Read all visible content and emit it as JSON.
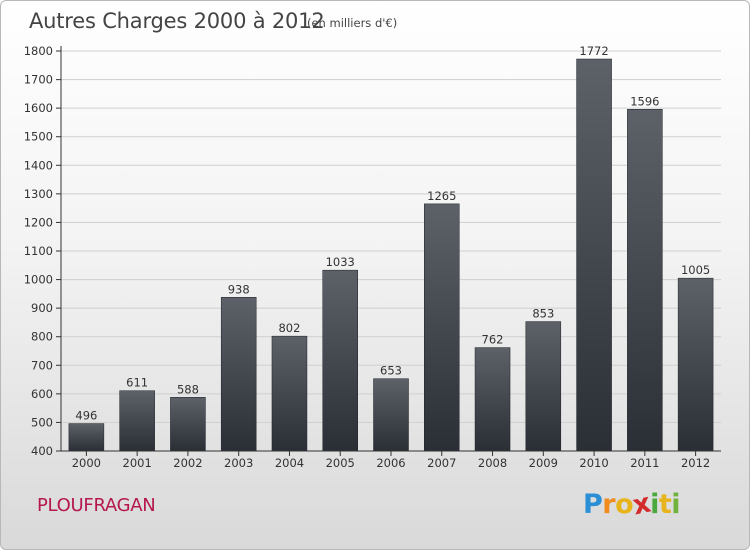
{
  "header": {
    "title": "Autres Charges 2000 à 2012",
    "subtitle": "(en milliers d'€)"
  },
  "footer": {
    "city": "PLOUFRAGAN",
    "logo": {
      "letters": [
        "P",
        "r",
        "o",
        "x",
        "i",
        "t",
        "i"
      ],
      "colors": [
        "#2a8fd4",
        "#f08c1e",
        "#e8b41c",
        "#d42c2c",
        "#4aa83c",
        "#e8b41c",
        "#6fb23c"
      ]
    }
  },
  "colors": {
    "bar_top": "#5d6168",
    "bar_bottom": "#2a2e35",
    "axis": "#333333",
    "grid": "#cfcfcf",
    "city_text": "#b5174f"
  },
  "chart_data": {
    "type": "bar",
    "title": "Autres Charges 2000 à 2012",
    "subtitle": "(en milliers d'€)",
    "categories": [
      "2000",
      "2001",
      "2002",
      "2003",
      "2004",
      "2005",
      "2006",
      "2007",
      "2008",
      "2009",
      "2010",
      "2011",
      "2012"
    ],
    "values": [
      496,
      611,
      588,
      938,
      802,
      1033,
      653,
      1265,
      762,
      853,
      1772,
      1596,
      1005
    ],
    "ylim": [
      400,
      1800
    ],
    "yticks": [
      400,
      500,
      600,
      700,
      800,
      900,
      1000,
      1100,
      1200,
      1300,
      1400,
      1500,
      1600,
      1700,
      1800
    ],
    "grid": true,
    "data_labels": true
  }
}
